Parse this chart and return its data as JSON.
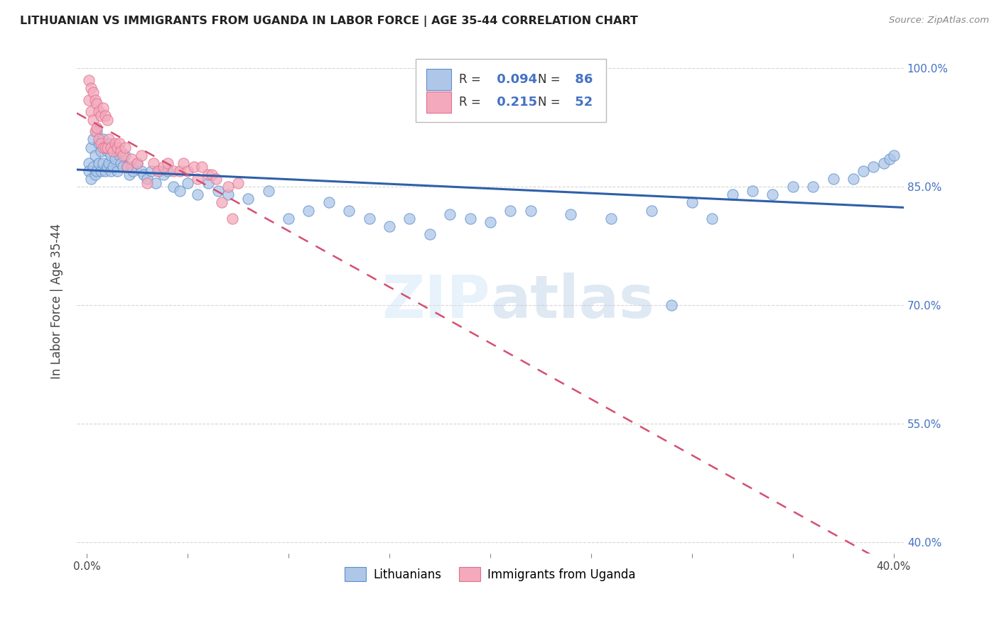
{
  "title": "LITHUANIAN VS IMMIGRANTS FROM UGANDA IN LABOR FORCE | AGE 35-44 CORRELATION CHART",
  "source": "Source: ZipAtlas.com",
  "ylabel": "In Labor Force | Age 35-44",
  "legend_R_blue": "0.094",
  "legend_N_blue": "86",
  "legend_R_pink": "0.215",
  "legend_N_pink": "52",
  "blue_color": "#aec6e8",
  "blue_edge": "#5b8fcc",
  "pink_color": "#f4aabc",
  "pink_edge": "#e07090",
  "line_blue": "#2f5faa",
  "line_pink": "#d45070",
  "blue_scatter_x": [
    0.001,
    0.001,
    0.002,
    0.002,
    0.003,
    0.003,
    0.004,
    0.004,
    0.005,
    0.005,
    0.006,
    0.006,
    0.007,
    0.007,
    0.008,
    0.008,
    0.009,
    0.009,
    0.01,
    0.01,
    0.011,
    0.011,
    0.012,
    0.012,
    0.013,
    0.013,
    0.014,
    0.015,
    0.015,
    0.016,
    0.017,
    0.018,
    0.019,
    0.02,
    0.021,
    0.022,
    0.023,
    0.025,
    0.027,
    0.028,
    0.03,
    0.032,
    0.034,
    0.036,
    0.038,
    0.04,
    0.043,
    0.046,
    0.05,
    0.055,
    0.06,
    0.065,
    0.07,
    0.08,
    0.09,
    0.1,
    0.11,
    0.12,
    0.13,
    0.14,
    0.15,
    0.16,
    0.17,
    0.18,
    0.19,
    0.2,
    0.21,
    0.22,
    0.24,
    0.26,
    0.28,
    0.29,
    0.3,
    0.31,
    0.32,
    0.33,
    0.34,
    0.35,
    0.36,
    0.37,
    0.38,
    0.385,
    0.39,
    0.395,
    0.398,
    0.4
  ],
  "blue_scatter_y": [
    0.88,
    0.87,
    0.9,
    0.86,
    0.91,
    0.875,
    0.89,
    0.865,
    0.92,
    0.87,
    0.905,
    0.88,
    0.895,
    0.87,
    0.91,
    0.88,
    0.9,
    0.87,
    0.895,
    0.875,
    0.905,
    0.88,
    0.89,
    0.87,
    0.9,
    0.875,
    0.885,
    0.895,
    0.87,
    0.89,
    0.88,
    0.875,
    0.89,
    0.875,
    0.865,
    0.875,
    0.87,
    0.88,
    0.87,
    0.865,
    0.86,
    0.87,
    0.855,
    0.87,
    0.865,
    0.87,
    0.85,
    0.845,
    0.855,
    0.84,
    0.855,
    0.845,
    0.84,
    0.835,
    0.845,
    0.81,
    0.82,
    0.83,
    0.82,
    0.81,
    0.8,
    0.81,
    0.79,
    0.815,
    0.81,
    0.805,
    0.82,
    0.82,
    0.815,
    0.81,
    0.82,
    0.7,
    0.83,
    0.81,
    0.84,
    0.845,
    0.84,
    0.85,
    0.85,
    0.86,
    0.86,
    0.87,
    0.875,
    0.88,
    0.885,
    0.89
  ],
  "pink_scatter_x": [
    0.001,
    0.001,
    0.002,
    0.002,
    0.003,
    0.003,
    0.004,
    0.004,
    0.005,
    0.005,
    0.006,
    0.006,
    0.007,
    0.007,
    0.008,
    0.008,
    0.009,
    0.009,
    0.01,
    0.01,
    0.011,
    0.012,
    0.013,
    0.014,
    0.015,
    0.016,
    0.017,
    0.018,
    0.019,
    0.02,
    0.022,
    0.025,
    0.027,
    0.03,
    0.033,
    0.035,
    0.038,
    0.04,
    0.043,
    0.046,
    0.048,
    0.05,
    0.053,
    0.055,
    0.057,
    0.06,
    0.062,
    0.064,
    0.067,
    0.07,
    0.072,
    0.075
  ],
  "pink_scatter_y": [
    0.985,
    0.96,
    0.975,
    0.945,
    0.97,
    0.935,
    0.96,
    0.92,
    0.955,
    0.925,
    0.945,
    0.91,
    0.94,
    0.905,
    0.95,
    0.9,
    0.94,
    0.9,
    0.935,
    0.9,
    0.91,
    0.9,
    0.895,
    0.905,
    0.9,
    0.905,
    0.895,
    0.89,
    0.9,
    0.875,
    0.885,
    0.88,
    0.89,
    0.855,
    0.88,
    0.87,
    0.875,
    0.88,
    0.87,
    0.87,
    0.88,
    0.87,
    0.875,
    0.86,
    0.875,
    0.865,
    0.865,
    0.86,
    0.83,
    0.85,
    0.81,
    0.855
  ],
  "xlim": [
    -0.005,
    0.405
  ],
  "ylim": [
    0.385,
    1.025
  ],
  "x_ticks": [
    0.0,
    0.05,
    0.1,
    0.15,
    0.2,
    0.25,
    0.3,
    0.35,
    0.4
  ],
  "y_ticks": [
    0.4,
    0.55,
    0.7,
    0.85,
    1.0
  ],
  "y_tick_labels": [
    "40.0%",
    "55.0%",
    "70.0%",
    "85.0%",
    "100.0%"
  ]
}
